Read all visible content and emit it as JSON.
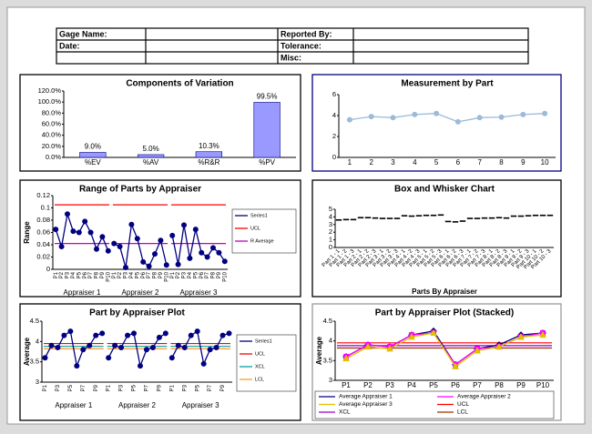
{
  "header": {
    "left_labels": [
      "Gage Name:",
      "Date:"
    ],
    "right_labels": [
      "Reported By:",
      "Tolerance:",
      "Misc:"
    ]
  },
  "chart_data": [
    {
      "type": "bar",
      "title": "Components of Variation",
      "categories": [
        "%EV",
        "%AV",
        "%R&R",
        "%PV"
      ],
      "values": [
        9.0,
        5.0,
        10.3,
        99.5
      ],
      "value_labels": [
        "9.0%",
        "5.0%",
        "10.3%",
        "99.5%"
      ],
      "color": "#9999ff",
      "ylim": [
        0,
        120
      ],
      "yticks": [
        {
          "value": 0,
          "label": "0.0%"
        },
        {
          "value": 20,
          "label": "20.0%"
        },
        {
          "value": 40,
          "label": "40.0%"
        },
        {
          "value": 60,
          "label": "60.0%"
        },
        {
          "value": 80,
          "label": "80.0%"
        },
        {
          "value": 100,
          "label": "100.0%"
        },
        {
          "value": 120,
          "label": "120.0%"
        }
      ]
    },
    {
      "type": "line",
      "title": "Measurement by Part",
      "categories": [
        "1",
        "2",
        "3",
        "4",
        "5",
        "6",
        "7",
        "8",
        "9",
        "10"
      ],
      "series": [
        {
          "color": "#9bbbd9",
          "marker": "circle",
          "values": [
            3.6,
            3.9,
            3.8,
            4.1,
            4.2,
            3.4,
            3.8,
            3.85,
            4.1,
            4.2
          ]
        }
      ],
      "ylim": [
        0,
        6
      ],
      "yticks": [
        0,
        2,
        4,
        6
      ]
    },
    {
      "type": "line",
      "title": "Range of Parts by Appraiser",
      "ylabel": "Range",
      "categories": [
        "P1",
        "P2",
        "P3",
        "P4",
        "P5",
        "P6",
        "P7",
        "P8",
        "P9",
        "P10",
        "P1",
        "P2",
        "P3",
        "P4",
        "P5",
        "P6",
        "P7",
        "P8",
        "P9",
        "P10",
        "P1",
        "P2",
        "P3",
        "P4",
        "P5",
        "P6",
        "P7",
        "P8",
        "P9",
        "P10"
      ],
      "groups": [
        "Appraiser 1",
        "Appraiser 2",
        "Appraiser 3"
      ],
      "series": [
        {
          "name": "Series1",
          "color": "#000080",
          "marker": "circle",
          "values": [
            0.065,
            0.037,
            0.09,
            0.062,
            0.06,
            0.078,
            0.06,
            0.033,
            0.053,
            0.03,
            0.042,
            0.037,
            0.003,
            0.073,
            0.05,
            0.012,
            0.005,
            0.025,
            0.047,
            0.007,
            0.055,
            0.008,
            0.072,
            0.018,
            0.065,
            0.027,
            0.02,
            0.035,
            0.027,
            0.013
          ]
        }
      ],
      "ref_lines": [
        {
          "name": "UCL",
          "color": "#ff0000",
          "value": 0.105
        },
        {
          "name": "R Average",
          "color": "#c000c0",
          "value": 0.042
        }
      ],
      "ylim": [
        0,
        0.12
      ],
      "yticks": [
        0,
        0.02,
        0.04,
        0.06,
        0.08,
        0.1,
        0.12
      ]
    },
    {
      "type": "box",
      "title": "Box and Whisker Chart",
      "xlabel": "Parts By Appraiser",
      "categories": [
        "Part 1 - 1",
        "Part 1 - 2",
        "Part 1 - 3",
        "Part 2 - 1",
        "Part 2 - 2",
        "Part 2 - 3",
        "Part 3 - 1",
        "Part 3 - 2",
        "Part 3 - 3",
        "Part 4 - 1",
        "Part 4 - 2",
        "Part 4 - 3",
        "Part 5 - 1",
        "Part 5 - 2",
        "Part 5 - 3",
        "Part 6 - 1",
        "Part 6 - 2",
        "Part 6 - 3",
        "Part 7 - 1",
        "Part 7 - 2",
        "Part 7 - 3",
        "Part 8 - 1",
        "Part 8 - 2",
        "Part 8 - 3",
        "Part 9 - 1",
        "Part 9 - 2",
        "Part 9 - 3",
        "Part 10 - 1",
        "Part 10 - 2",
        "Part 10 - 3"
      ],
      "values": [
        3.6,
        3.65,
        3.65,
        3.9,
        3.9,
        3.85,
        3.8,
        3.8,
        3.8,
        4.15,
        4.1,
        4.15,
        4.2,
        4.2,
        4.25,
        3.4,
        3.35,
        3.45,
        3.8,
        3.8,
        3.85,
        3.85,
        3.9,
        3.85,
        4.1,
        4.1,
        4.15,
        4.2,
        4.2,
        4.2
      ],
      "color": "#000000",
      "ylim": [
        0,
        5
      ],
      "yticks": [
        0,
        1,
        2,
        3,
        4,
        5
      ]
    },
    {
      "type": "line",
      "title": "Part by Appraiser Plot",
      "ylabel": "Average",
      "categories": [
        "P1",
        null,
        "P3",
        null,
        "P5",
        null,
        "P7",
        null,
        "P9",
        null,
        "P1",
        null,
        "P3",
        null,
        "P5",
        null,
        "P7",
        null,
        "P9",
        null,
        "P1",
        null,
        "P3",
        null,
        "P5",
        null,
        "P7",
        null,
        "P9",
        null
      ],
      "groups": [
        "Appraiser 1",
        "Appraiser 2",
        "Appraiser 3"
      ],
      "series": [
        {
          "name": "Series1",
          "color": "#000080",
          "marker": "circle",
          "values": [
            3.6,
            3.9,
            3.85,
            4.15,
            4.25,
            3.4,
            3.8,
            3.9,
            4.15,
            4.2,
            3.6,
            3.9,
            3.85,
            4.15,
            4.2,
            3.4,
            3.8,
            3.85,
            4.1,
            4.2,
            3.6,
            3.9,
            3.85,
            4.15,
            4.25,
            3.45,
            3.8,
            3.85,
            4.15,
            4.2
          ]
        }
      ],
      "ref_lines": [
        {
          "name": "UCL",
          "color": "#ff0000",
          "value": 3.95
        },
        {
          "name": "XCL",
          "color": "#00a0a0",
          "value": 3.88
        },
        {
          "name": "LCL",
          "color": "#ff9933",
          "value": 3.82
        }
      ],
      "ylim": [
        3,
        4.5
      ],
      "yticks": [
        3,
        3.5,
        4,
        4.5
      ]
    },
    {
      "type": "line",
      "title": "Part by Appraiser Plot (Stacked)",
      "ylabel": "Average",
      "categories": [
        "P1",
        "P2",
        "P3",
        "P4",
        "P5",
        "P6",
        "P7",
        "P8",
        "P9",
        "P10"
      ],
      "series": [
        {
          "name": "Average Appraiser 1",
          "color": "#000080",
          "marker": "diamond",
          "values": [
            3.6,
            3.9,
            3.85,
            4.15,
            4.25,
            3.4,
            3.8,
            3.9,
            4.15,
            4.2
          ]
        },
        {
          "name": "Average Appraiser 2",
          "color": "#ff00ff",
          "marker": "square",
          "values": [
            3.6,
            3.9,
            3.85,
            4.15,
            4.2,
            3.4,
            3.8,
            3.85,
            4.1,
            4.2
          ]
        },
        {
          "name": "Average Appraiser 3",
          "color": "#e0c000",
          "marker": "triangle",
          "values": [
            3.55,
            3.85,
            3.8,
            4.1,
            4.2,
            3.35,
            3.75,
            3.85,
            4.1,
            4.15
          ]
        }
      ],
      "ref_lines": [
        {
          "name": "UCL",
          "color": "#ff0000",
          "value": 3.95
        },
        {
          "name": "XCL",
          "color": "#9900cc",
          "value": 3.88
        },
        {
          "name": "LCL",
          "color": "#993300",
          "value": 3.82
        }
      ],
      "ylim": [
        3,
        4.5
      ],
      "yticks": [
        3,
        3.5,
        4,
        4.5
      ]
    }
  ]
}
